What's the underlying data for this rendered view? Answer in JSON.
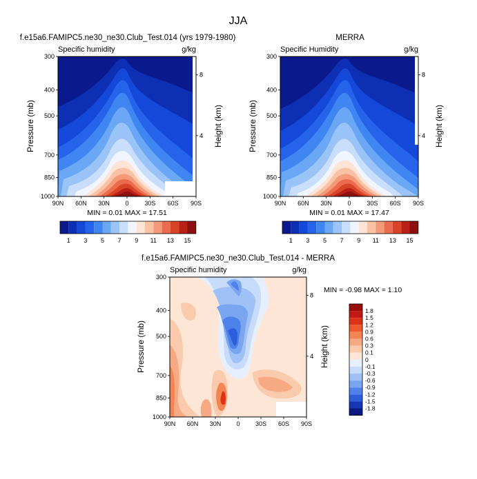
{
  "page": {
    "title": "JJA"
  },
  "chart_data": [
    {
      "type": "heatmap",
      "title": "f.e15a6.FAMIPC5.ne30_ne30.Club_Test.014 (yrs 1979-1980)",
      "left_label": "Specific humidity",
      "units": "g/kg",
      "xlabel": "",
      "ylabel": "Pressure (mb)",
      "y2label": "Height (km)",
      "x_ticks": [
        "90N",
        "60N",
        "30N",
        "0",
        "30S",
        "60S",
        "90S"
      ],
      "y_ticks": [
        "300",
        "400",
        "500",
        "700",
        "850",
        "1000"
      ],
      "y2_ticks": [
        "8",
        "4"
      ],
      "stats": "MIN =  0.01  MAX =  17.51",
      "min": 0.01,
      "max": 17.51,
      "colorbar_labels": [
        "1",
        "3",
        "5",
        "7",
        "9",
        "11",
        "13",
        "15"
      ],
      "colors": [
        "#0a1a8c",
        "#0c2fb4",
        "#1448d8",
        "#2563ea",
        "#3f86f2",
        "#6aa7f5",
        "#9ac4f8",
        "#c9defb",
        "#f1f5ff",
        "#fde4d6",
        "#f9c2a5",
        "#f59a78",
        "#ec6b4d",
        "#d84427",
        "#b82216",
        "#8e0f0f"
      ]
    },
    {
      "type": "heatmap",
      "title": "MERRA",
      "left_label": "Specific Humidity",
      "units": "g/kg",
      "xlabel": "",
      "ylabel": "Pressure (mb)",
      "y2label": "Height (km)",
      "x_ticks": [
        "90N",
        "60N",
        "30N",
        "0",
        "30S",
        "60S",
        "90S"
      ],
      "y_ticks": [
        "300",
        "400",
        "500",
        "700",
        "850",
        "1000"
      ],
      "y2_ticks": [
        "8",
        "4"
      ],
      "stats": "MIN =  0.01  MAX =  17.47",
      "min": 0.01,
      "max": 17.47,
      "colorbar_labels": [
        "1",
        "3",
        "5",
        "7",
        "9",
        "11",
        "13",
        "15"
      ],
      "colors": [
        "#0a1a8c",
        "#0c2fb4",
        "#1448d8",
        "#2563ea",
        "#3f86f2",
        "#6aa7f5",
        "#9ac4f8",
        "#c9defb",
        "#f1f5ff",
        "#fde4d6",
        "#f9c2a5",
        "#f59a78",
        "#ec6b4d",
        "#d84427",
        "#b82216",
        "#8e0f0f"
      ]
    },
    {
      "type": "heatmap",
      "title": "f.e15a6.FAMIPC5.ne30_ne30.Club_Test.014 - MERRA",
      "left_label": "Specific humidity",
      "units": "g/kg",
      "xlabel": "",
      "ylabel": "Pressure (mb)",
      "y2label": "Height (km)",
      "x_ticks": [
        "90N",
        "60N",
        "30N",
        "0",
        "30S",
        "60S",
        "90S"
      ],
      "y_ticks": [
        "300",
        "400",
        "500",
        "700",
        "850",
        "1000"
      ],
      "y2_ticks": [
        "8",
        "4"
      ],
      "stats": "MIN = -0.98  MAX =  1.10",
      "min": -0.98,
      "max": 1.1,
      "colorbar_labels": [
        "1.8",
        "1.5",
        "1.2",
        "0.9",
        "0.6",
        "0.3",
        "0.1",
        "0",
        "-0.1",
        "-0.3",
        "-0.6",
        "-0.9",
        "-1.2",
        "-1.5",
        "-1.8"
      ],
      "colors": [
        "#9b0d0d",
        "#c01a14",
        "#dc3218",
        "#ee5a2e",
        "#f38555",
        "#f6a982",
        "#f9caab",
        "#fde6d6",
        "#e6effd",
        "#c7dbfa",
        "#a0c1f6",
        "#7aa5f1",
        "#4e82ea",
        "#2d5fdc",
        "#1537b6",
        "#0a1a80"
      ]
    }
  ]
}
